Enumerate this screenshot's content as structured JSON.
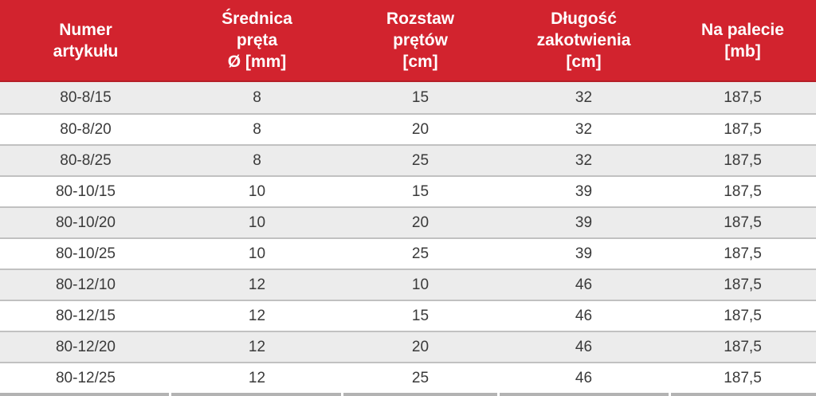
{
  "colors": {
    "header_bg": "#d2232e",
    "header_border": "#b51f28",
    "header_text": "#ffffff",
    "row_alt_bg": "#ececec",
    "row_bg": "#ffffff",
    "row_separator": "#c1c1c1",
    "bottom_border": "#b3b3b3",
    "cell_text": "#3a3a3a"
  },
  "table": {
    "columns": [
      {
        "id": "article_number",
        "label": "Numer\nartykułu"
      },
      {
        "id": "rod_diameter",
        "label": "Średnica\npręta\nØ [mm]"
      },
      {
        "id": "rod_spacing",
        "label": "Rozstaw\nprętów\n[cm]"
      },
      {
        "id": "anchoring_length",
        "label": "Długość\nzakotwienia\n[cm]"
      },
      {
        "id": "per_pallet",
        "label": "Na palecie\n[mb]"
      }
    ],
    "rows": [
      [
        "80-8/15",
        "8",
        "15",
        "32",
        "187,5"
      ],
      [
        "80-8/20",
        "8",
        "20",
        "32",
        "187,5"
      ],
      [
        "80-8/25",
        "8",
        "25",
        "32",
        "187,5"
      ],
      [
        "80-10/15",
        "10",
        "15",
        "39",
        "187,5"
      ],
      [
        "80-10/20",
        "10",
        "20",
        "39",
        "187,5"
      ],
      [
        "80-10/25",
        "10",
        "25",
        "39",
        "187,5"
      ],
      [
        "80-12/10",
        "12",
        "10",
        "46",
        "187,5"
      ],
      [
        "80-12/15",
        "12",
        "15",
        "46",
        "187,5"
      ],
      [
        "80-12/20",
        "12",
        "20",
        "46",
        "187,5"
      ],
      [
        "80-12/25",
        "12",
        "25",
        "46",
        "187,5"
      ]
    ]
  }
}
